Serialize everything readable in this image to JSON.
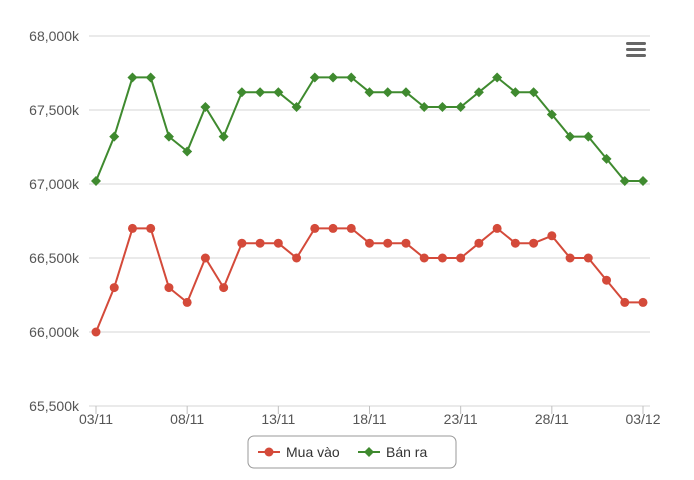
{
  "chart_data": {
    "type": "line",
    "title": "",
    "xlabel": "",
    "ylabel": "",
    "ylim": [
      65500,
      68000
    ],
    "y_ticks": [
      65500,
      66000,
      66500,
      67000,
      67500,
      68000
    ],
    "y_tick_labels": [
      "65,500k",
      "66,000k",
      "66,500k",
      "67,000k",
      "67,500k",
      "68,000k"
    ],
    "x": [
      "03/11",
      "04/11",
      "05/11",
      "06/11",
      "07/11",
      "08/11",
      "09/11",
      "10/11",
      "11/11",
      "12/11",
      "13/11",
      "14/11",
      "15/11",
      "16/11",
      "17/11",
      "18/11",
      "19/11",
      "20/11",
      "21/11",
      "22/11",
      "23/11",
      "24/11",
      "25/11",
      "26/11",
      "27/11",
      "28/11",
      "29/11",
      "30/11",
      "01/12",
      "02/12",
      "03/12"
    ],
    "x_tick_labels": [
      {
        "index": 0,
        "label": "03/11"
      },
      {
        "index": 5,
        "label": "08/11"
      },
      {
        "index": 10,
        "label": "13/11"
      },
      {
        "index": 15,
        "label": "18/11"
      },
      {
        "index": 20,
        "label": "23/11"
      },
      {
        "index": 25,
        "label": "28/11"
      },
      {
        "index": 30,
        "label": "03/12"
      }
    ],
    "grid": true,
    "legend_position": "bottom-center",
    "series": [
      {
        "name": "Mua vào",
        "color": "#d44a3a",
        "marker": "circle",
        "values": [
          66000,
          66300,
          66700,
          66700,
          66300,
          66200,
          66500,
          66300,
          66600,
          66600,
          66600,
          66500,
          66700,
          66700,
          66700,
          66600,
          66600,
          66600,
          66500,
          66500,
          66500,
          66600,
          66700,
          66600,
          66600,
          66650,
          66500,
          66500,
          66350,
          66200,
          66200
        ]
      },
      {
        "name": "Bán ra",
        "color": "#3f8a2f",
        "marker": "diamond",
        "values": [
          67020,
          67320,
          67720,
          67720,
          67320,
          67220,
          67520,
          67320,
          67620,
          67620,
          67620,
          67520,
          67720,
          67720,
          67720,
          67620,
          67620,
          67620,
          67520,
          67520,
          67520,
          67620,
          67720,
          67620,
          67620,
          67470,
          67320,
          67320,
          67170,
          67020,
          67020
        ]
      }
    ]
  },
  "menu": {
    "icon": "hamburger-menu-icon"
  }
}
